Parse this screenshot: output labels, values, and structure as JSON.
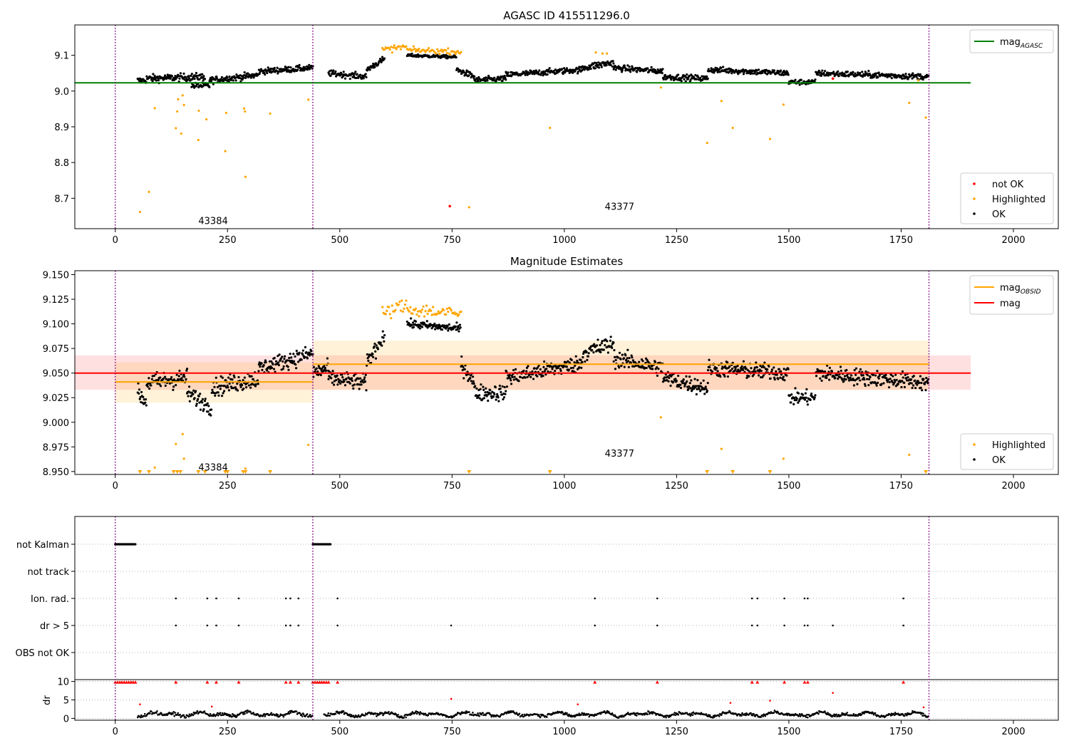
{
  "chart_data": [
    {
      "type": "scatter",
      "title": "AGASC ID 415511296.0",
      "xlim": [
        -90,
        2100
      ],
      "ylim": [
        8.615,
        9.185
      ],
      "xticks": [
        0,
        250,
        500,
        750,
        1000,
        1250,
        1500,
        1750,
        2000
      ],
      "yticks": [
        8.7,
        8.8,
        8.9,
        9.0,
        9.1
      ],
      "ytick_labels": [
        "8.7",
        "8.8",
        "8.9",
        "9.0",
        "9.1"
      ],
      "obs_boundaries": [
        0,
        440,
        1812
      ],
      "obs_labels": [
        {
          "text": "43384",
          "x": 218,
          "y": 8.636
        },
        {
          "text": "43377",
          "x": 1123,
          "y": 8.676
        }
      ],
      "hlines": [
        {
          "name": "mag_AGASC",
          "value": 9.023,
          "x": [
            -90,
            1905
          ],
          "color": "#008000"
        }
      ],
      "legend_lines": [
        {
          "label": "mag",
          "sub": "AGASC",
          "color": "#008000"
        }
      ],
      "legend_points": [
        {
          "label": "not OK",
          "color": "#ff0000"
        },
        {
          "label": "Highlighted",
          "color": "#ffa500"
        },
        {
          "label": "OK",
          "color": "#000000"
        }
      ],
      "ok_segments": [
        {
          "x0": 50,
          "x1": 70,
          "y": [
            9.03,
            9.03
          ],
          "noise": 0.008
        },
        {
          "x0": 70,
          "x1": 200,
          "y": [
            9.035,
            9.04
          ],
          "noise": 0.01
        },
        {
          "x0": 170,
          "x1": 210,
          "y": [
            9.015,
            9.015
          ],
          "noise": 0.008
        },
        {
          "x0": 210,
          "x1": 320,
          "y": [
            9.03,
            9.045
          ],
          "noise": 0.009
        },
        {
          "x0": 320,
          "x1": 440,
          "y": [
            9.055,
            9.065
          ],
          "noise": 0.008
        },
        {
          "x0": 475,
          "x1": 560,
          "y": [
            9.05,
            9.04
          ],
          "noise": 0.008
        },
        {
          "x0": 560,
          "x1": 600,
          "y": [
            9.06,
            9.09
          ],
          "noise": 0.008
        },
        {
          "x0": 650,
          "x1": 760,
          "y": [
            9.1,
            9.095
          ],
          "noise": 0.004
        },
        {
          "x0": 760,
          "x1": 800,
          "y": [
            9.06,
            9.04
          ],
          "noise": 0.008
        },
        {
          "x0": 800,
          "x1": 870,
          "y": [
            9.03,
            9.035
          ],
          "noise": 0.008
        },
        {
          "x0": 870,
          "x1": 1040,
          "y": [
            9.045,
            9.06
          ],
          "noise": 0.008
        },
        {
          "x0": 1040,
          "x1": 1110,
          "y": [
            9.065,
            9.08
          ],
          "noise": 0.01
        },
        {
          "x0": 1110,
          "x1": 1220,
          "y": [
            9.065,
            9.055
          ],
          "noise": 0.008
        },
        {
          "x0": 1220,
          "x1": 1320,
          "y": [
            9.04,
            9.035
          ],
          "noise": 0.008
        },
        {
          "x0": 1320,
          "x1": 1500,
          "y": [
            9.06,
            9.05
          ],
          "noise": 0.008
        },
        {
          "x0": 1500,
          "x1": 1560,
          "y": [
            9.025,
            9.025
          ],
          "noise": 0.007
        },
        {
          "x0": 1560,
          "x1": 1812,
          "y": [
            9.05,
            9.04
          ],
          "noise": 0.008
        }
      ],
      "highlighted_segments": [
        {
          "x0": 595,
          "x1": 650,
          "y": [
            9.115,
            9.125
          ],
          "noise": 0.008
        },
        {
          "x0": 650,
          "x1": 770,
          "y": [
            9.115,
            9.11
          ],
          "noise": 0.007
        }
      ],
      "highlighted_points": [
        [
          55,
          8.662
        ],
        [
          75,
          8.718
        ],
        [
          88,
          8.952
        ],
        [
          135,
          8.896
        ],
        [
          138,
          8.943
        ],
        [
          140,
          8.977
        ],
        [
          147,
          8.881
        ],
        [
          150,
          8.988
        ],
        [
          153,
          8.961
        ],
        [
          185,
          8.863
        ],
        [
          186,
          8.945
        ],
        [
          203,
          8.921
        ],
        [
          245,
          8.832
        ],
        [
          247,
          8.939
        ],
        [
          287,
          8.951
        ],
        [
          289,
          8.943
        ],
        [
          290,
          8.76
        ],
        [
          345,
          8.937
        ],
        [
          430,
          8.976
        ],
        [
          788,
          8.675
        ],
        [
          968,
          8.897
        ],
        [
          1070,
          9.108
        ],
        [
          1085,
          9.105
        ],
        [
          1095,
          9.105
        ],
        [
          1215,
          9.01
        ],
        [
          1318,
          8.855
        ],
        [
          1350,
          8.972
        ],
        [
          1375,
          8.897
        ],
        [
          1458,
          8.866
        ],
        [
          1488,
          8.962
        ],
        [
          1768,
          8.967
        ],
        [
          1788,
          9.03
        ],
        [
          1805,
          8.926
        ]
      ],
      "notok_points": [
        [
          745,
          8.678
        ],
        [
          1598,
          9.035
        ]
      ]
    },
    {
      "type": "scatter",
      "title": "Magnitude Estimates",
      "xlim": [
        -90,
        2100
      ],
      "ylim": [
        8.947,
        9.154
      ],
      "xticks": [
        0,
        250,
        500,
        750,
        1000,
        1250,
        1500,
        1750,
        2000
      ],
      "yticks": [
        8.95,
        8.975,
        9.0,
        9.025,
        9.05,
        9.075,
        9.1,
        9.125,
        9.15
      ],
      "ytick_labels": [
        "8.950",
        "8.975",
        "9.000",
        "9.025",
        "9.050",
        "9.075",
        "9.100",
        "9.125",
        "9.150"
      ],
      "obs_boundaries": [
        0,
        440,
        1812
      ],
      "obs_labels": [
        {
          "text": "43384",
          "x": 218,
          "y": 8.954
        },
        {
          "text": "43377",
          "x": 1123,
          "y": 8.968
        }
      ],
      "bands": [
        {
          "x": [
            -90,
            1905
          ],
          "y": [
            9.033,
            9.068
          ],
          "color": "#ff0000",
          "opacity": 0.12
        },
        {
          "x": [
            0,
            440
          ],
          "y": [
            9.02,
            9.061
          ],
          "color": "#ffa500",
          "opacity": 0.15
        },
        {
          "x": [
            440,
            1812
          ],
          "y": [
            9.033,
            9.083
          ],
          "color": "#ffa500",
          "opacity": 0.15
        }
      ],
      "hlines": [
        {
          "name": "mag_OBSID",
          "value": 9.041,
          "x": [
            0,
            440
          ],
          "color": "#ffa500"
        },
        {
          "name": "mag_OBSID",
          "value": 9.059,
          "x": [
            440,
            1812
          ],
          "color": "#ffa500"
        },
        {
          "name": "mag",
          "value": 9.05,
          "x": [
            -90,
            1905
          ],
          "color": "#ff0000"
        }
      ],
      "legend_lines": [
        {
          "label": "mag",
          "sub": "OBSID",
          "color": "#ffa500"
        },
        {
          "label": "mag",
          "sub": "",
          "color": "#ff0000"
        }
      ],
      "legend_points": [
        {
          "label": "Highlighted",
          "color": "#ffa500"
        },
        {
          "label": "OK",
          "color": "#000000"
        }
      ],
      "ok_segments": [
        {
          "x0": 50,
          "x1": 70,
          "y": [
            9.03,
            9.02
          ],
          "noise": 0.008
        },
        {
          "x0": 70,
          "x1": 160,
          "y": [
            9.04,
            9.045
          ],
          "noise": 0.009
        },
        {
          "x0": 160,
          "x1": 215,
          "y": [
            9.03,
            9.015
          ],
          "noise": 0.008
        },
        {
          "x0": 215,
          "x1": 320,
          "y": [
            9.035,
            9.045
          ],
          "noise": 0.009
        },
        {
          "x0": 320,
          "x1": 440,
          "y": [
            9.055,
            9.07
          ],
          "noise": 0.008
        },
        {
          "x0": 440,
          "x1": 475,
          "y": [
            9.05,
            9.055
          ],
          "noise": 0.008
        },
        {
          "x0": 475,
          "x1": 560,
          "y": [
            9.045,
            9.04
          ],
          "noise": 0.008
        },
        {
          "x0": 560,
          "x1": 600,
          "y": [
            9.06,
            9.09
          ],
          "noise": 0.008
        },
        {
          "x0": 650,
          "x1": 770,
          "y": [
            9.1,
            9.095
          ],
          "noise": 0.004
        },
        {
          "x0": 770,
          "x1": 800,
          "y": [
            9.06,
            9.04
          ],
          "noise": 0.008
        },
        {
          "x0": 800,
          "x1": 870,
          "y": [
            9.03,
            9.03
          ],
          "noise": 0.008
        },
        {
          "x0": 870,
          "x1": 1040,
          "y": [
            9.045,
            9.06
          ],
          "noise": 0.008
        },
        {
          "x0": 1040,
          "x1": 1110,
          "y": [
            9.07,
            9.08
          ],
          "noise": 0.009
        },
        {
          "x0": 1110,
          "x1": 1220,
          "y": [
            9.065,
            9.055
          ],
          "noise": 0.008
        },
        {
          "x0": 1220,
          "x1": 1320,
          "y": [
            9.045,
            9.035
          ],
          "noise": 0.008
        },
        {
          "x0": 1320,
          "x1": 1500,
          "y": [
            9.055,
            9.05
          ],
          "noise": 0.008
        },
        {
          "x0": 1500,
          "x1": 1560,
          "y": [
            9.025,
            9.025
          ],
          "noise": 0.007
        },
        {
          "x0": 1560,
          "x1": 1812,
          "y": [
            9.05,
            9.04
          ],
          "noise": 0.008
        }
      ],
      "highlighted_segments": [
        {
          "x0": 595,
          "x1": 650,
          "y": [
            9.11,
            9.12
          ],
          "noise": 0.007
        },
        {
          "x0": 650,
          "x1": 770,
          "y": [
            9.115,
            9.11
          ],
          "noise": 0.007
        }
      ],
      "highlighted_points": [
        [
          88,
          8.954
        ],
        [
          135,
          8.978
        ],
        [
          150,
          8.988
        ],
        [
          153,
          8.963
        ],
        [
          290,
          8.953
        ],
        [
          430,
          8.977
        ],
        [
          1215,
          9.005
        ],
        [
          1350,
          8.973
        ],
        [
          1488,
          8.963
        ],
        [
          1768,
          8.967
        ]
      ],
      "arrow_x": [
        55,
        75,
        130,
        138,
        145,
        185,
        200,
        245,
        250,
        285,
        290,
        345,
        788,
        968,
        1318,
        1375,
        1458,
        1805
      ],
      "notok_points": []
    },
    {
      "type": "scatter",
      "flags": {
        "categories": [
          "not Kalman",
          "not track",
          "Ion. rad.",
          "dr > 5",
          "OBS not OK"
        ],
        "not_kalman_ranges": [
          [
            0,
            45
          ],
          [
            440,
            480
          ]
        ],
        "ion_rad_x": [
          135,
          205,
          225,
          275,
          380,
          390,
          408,
          495,
          1068,
          1207,
          1418,
          1430,
          1490,
          1535,
          1542,
          1755
        ],
        "dr_gt_5_x": [
          135,
          205,
          225,
          275,
          380,
          390,
          408,
          495,
          748,
          1068,
          1207,
          1418,
          1430,
          1490,
          1535,
          1542,
          1598,
          1755
        ],
        "not_track_x": [],
        "obs_not_ok_x": []
      },
      "dr": {
        "ylabel": "dr",
        "ylim": [
          -0.5,
          10.5
        ],
        "yticks": [
          0,
          5,
          10
        ],
        "ytick_labels": [
          "0",
          "5",
          "10"
        ],
        "clip_x": [
          0,
          5,
          10,
          15,
          20,
          25,
          30,
          35,
          40,
          45,
          135,
          205,
          225,
          275,
          380,
          390,
          408,
          440,
          445,
          450,
          455,
          460,
          465,
          470,
          475,
          495,
          1068,
          1207,
          1418,
          1430,
          1490,
          1535,
          1542,
          1755
        ],
        "outliers": [
          [
            55,
            3.8
          ],
          [
            215,
            3.2
          ],
          [
            748,
            5.3
          ],
          [
            1030,
            3.8
          ],
          [
            1370,
            4.2
          ],
          [
            1458,
            4.8
          ],
          [
            1598,
            6.9
          ],
          [
            1800,
            3.0
          ]
        ]
      },
      "xlim": [
        -90,
        2100
      ],
      "xticks": [
        0,
        250,
        500,
        750,
        1000,
        1250,
        1500,
        1750,
        2000
      ],
      "obs_boundaries": [
        0,
        440,
        1812
      ]
    }
  ]
}
